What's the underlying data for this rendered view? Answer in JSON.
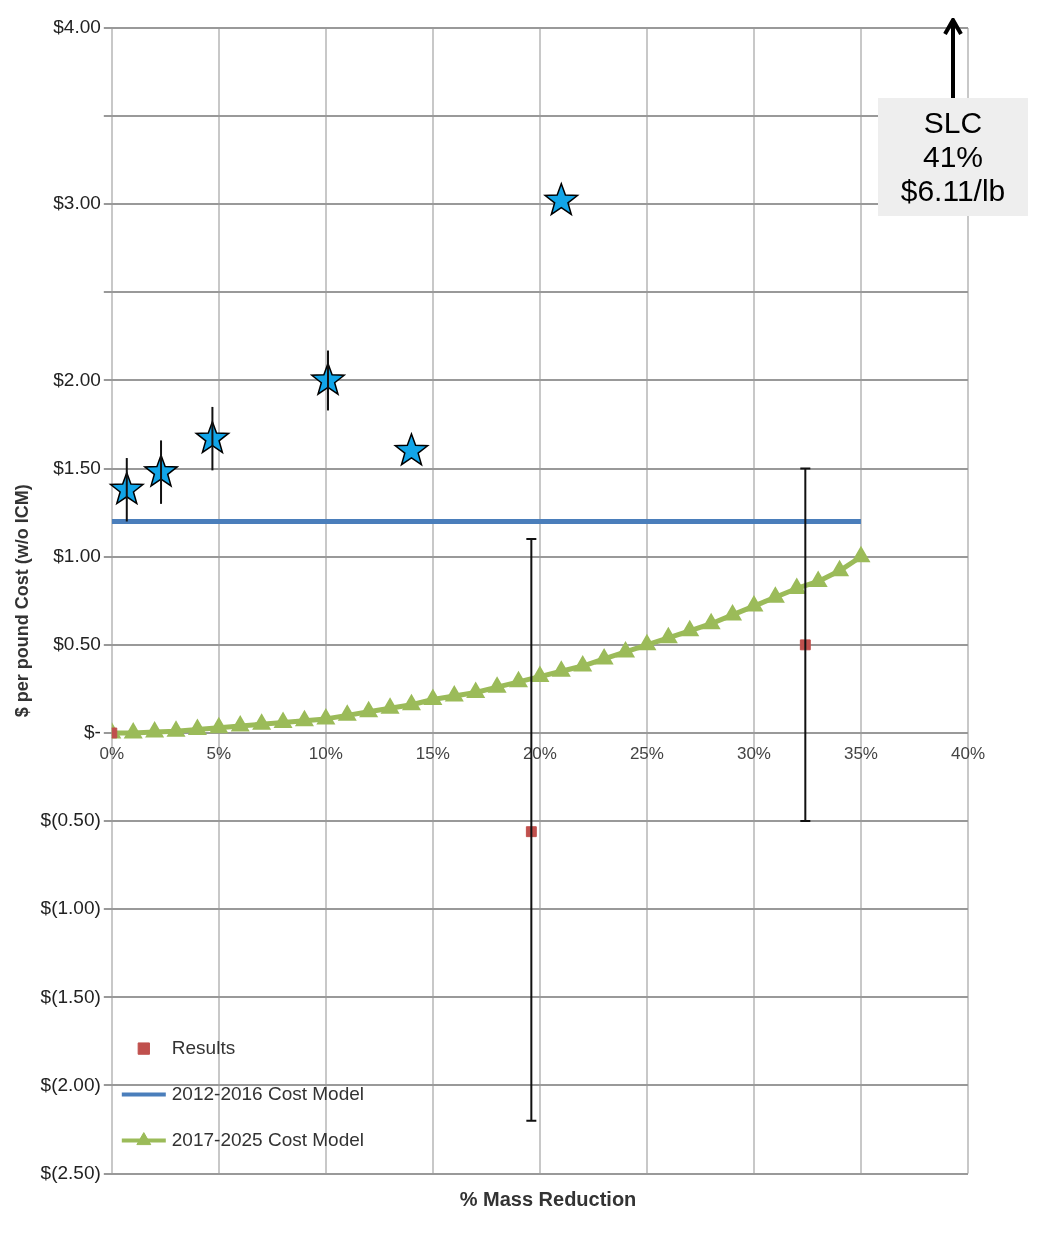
{
  "chart_data": {
    "type": "scatter",
    "xlabel": "% Mass Reduction",
    "ylabel": "$ per pound Cost (w/o ICM)",
    "xlim": [
      0,
      40
    ],
    "xticks": [
      {
        "value": 0,
        "label": "0%"
      },
      {
        "value": 5,
        "label": "5%"
      },
      {
        "value": 10,
        "label": "10%"
      },
      {
        "value": 15,
        "label": "15%"
      },
      {
        "value": 20,
        "label": "20%"
      },
      {
        "value": 25,
        "label": "25%"
      },
      {
        "value": 30,
        "label": "30%"
      },
      {
        "value": 35,
        "label": "35%"
      },
      {
        "value": 40,
        "label": "40%"
      }
    ],
    "ylim": [
      -2.5,
      4
    ],
    "yticks": [
      {
        "value": -2.5,
        "label": "$(2.50)"
      },
      {
        "value": -2,
        "label": "$(2.00)"
      },
      {
        "value": -1.5,
        "label": "$(1.50)"
      },
      {
        "value": -1,
        "label": "$(1.00)"
      },
      {
        "value": -0.5,
        "label": "$(0.50)"
      },
      {
        "value": 0,
        "label": "$-"
      },
      {
        "value": 0.5,
        "label": "$0.50"
      },
      {
        "value": 1,
        "label": "$1.00"
      },
      {
        "value": 1.5,
        "label": "$1.50"
      },
      {
        "value": 2,
        "label": "$2.00"
      },
      {
        "value": 2.5,
        "label": null
      },
      {
        "value": 3,
        "label": "$3.00"
      },
      {
        "value": 3.5,
        "label": null
      },
      {
        "value": 4,
        "label": "$4.00"
      }
    ],
    "grid": true,
    "legend": "bottom left",
    "annotations": [
      "SLC\n41%\n$6.11/lb"
    ],
    "series": [
      {
        "name": "Results",
        "type": "scatter",
        "marker": "square",
        "color": "#c0504d",
        "x": [
          0,
          19.6,
          32.4
        ],
        "values": [
          0,
          -0.56,
          0.5
        ],
        "errors": [
          null,
          [
            -2.2,
            1.1
          ],
          [
            -0.5,
            1.5
          ]
        ]
      },
      {
        "name": "2012-2016 Cost Model",
        "type": "line",
        "marker": "none",
        "color": "#4a7ebb",
        "x": [
          0,
          35
        ],
        "values": [
          1.2,
          1.2
        ]
      },
      {
        "name": "2017-2025 Cost Model",
        "type": "line",
        "marker": "triangle",
        "color": "#9bbb59",
        "x": [
          0,
          1,
          2,
          3,
          4,
          5,
          6,
          7,
          8,
          9,
          10,
          11,
          12,
          13,
          14,
          15,
          16,
          17,
          18,
          19,
          20,
          21,
          22,
          23,
          24,
          25,
          26,
          27,
          28,
          29,
          30,
          31,
          32,
          33,
          34,
          35
        ],
        "values": [
          0,
          0,
          0.005,
          0.01,
          0.02,
          0.03,
          0.04,
          0.05,
          0.06,
          0.07,
          0.08,
          0.1,
          0.12,
          0.14,
          0.16,
          0.19,
          0.21,
          0.23,
          0.26,
          0.29,
          0.32,
          0.35,
          0.38,
          0.42,
          0.46,
          0.5,
          0.54,
          0.58,
          0.62,
          0.67,
          0.72,
          0.77,
          0.82,
          0.86,
          0.92,
          1.0
        ]
      },
      {
        "type": "scatter",
        "marker": "star",
        "color": "#12a5e8",
        "x": [
          0.7,
          2.3,
          4.7,
          10.1,
          14,
          21
        ],
        "values": [
          1.38,
          1.48,
          1.67,
          2.0,
          1.6,
          3.02
        ],
        "errors": [
          0.18,
          0.18,
          0.18,
          0.17,
          null,
          null
        ]
      }
    ]
  }
}
